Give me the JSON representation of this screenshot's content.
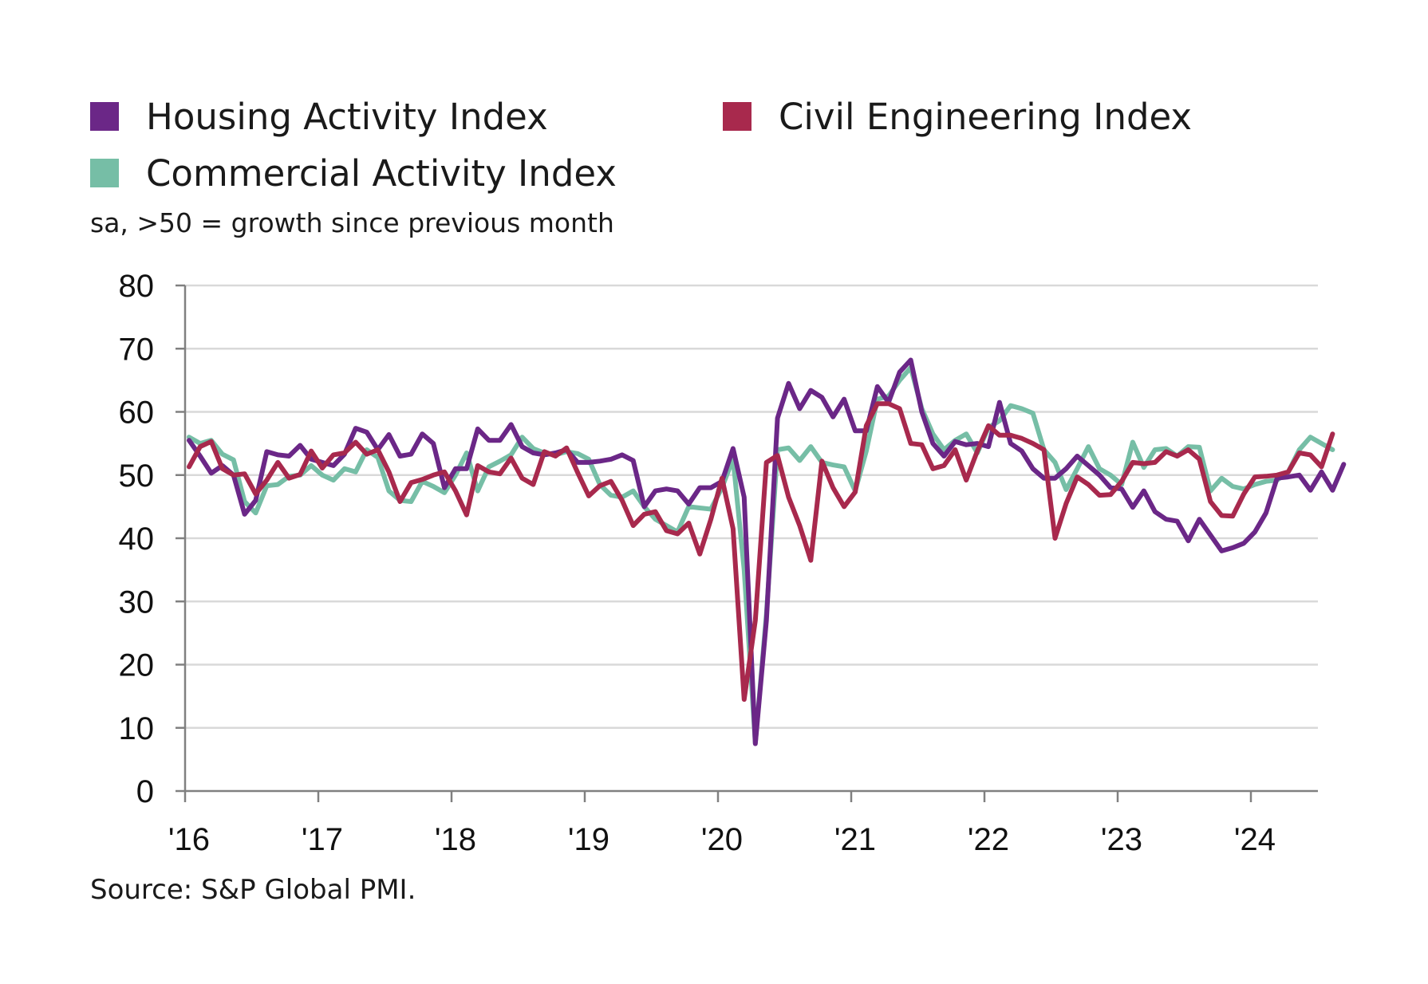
{
  "legend": {
    "items": [
      {
        "label": "Housing Activity Index",
        "color": "#6b2787"
      },
      {
        "label": "Civil Engineering Index",
        "color": "#a8294d"
      },
      {
        "label": "Commercial Activity Index",
        "color": "#76bea6"
      }
    ]
  },
  "subtitle": "sa, >50 = growth since previous month",
  "source": "Source: S&P Global PMI.",
  "chart_data": {
    "type": "line",
    "title": "",
    "xlabel": "",
    "ylabel": "",
    "ylim": [
      0,
      80
    ],
    "yticks": [
      0,
      10,
      20,
      30,
      40,
      50,
      60,
      70,
      80
    ],
    "xtick_labels": [
      "'16",
      "'17",
      "'18",
      "'19",
      "'20",
      "'21",
      "'22",
      "'23",
      "'24"
    ],
    "grid": true,
    "legend_position": "top",
    "x_start": "2016-01",
    "x_end": "2024-07",
    "series": [
      {
        "name": "Housing Activity Index",
        "color": "#6b2787",
        "values": [
          55.5,
          53.0,
          50.3,
          51.5,
          50.0,
          43.8,
          46.0,
          53.7,
          53.2,
          53.0,
          54.7,
          52.5,
          52.0,
          51.5,
          53.3,
          57.4,
          56.8,
          54.0,
          56.4,
          53.0,
          53.3,
          56.5,
          55.0,
          48.0,
          51.0,
          51.0,
          57.3,
          55.5,
          55.5,
          58.0,
          54.5,
          53.5,
          53.2,
          53.5,
          54.0,
          52.0,
          52.0,
          52.2,
          52.5,
          53.2,
          52.3,
          45.0,
          47.5,
          47.8,
          47.5,
          45.4,
          48.0,
          48.0,
          49.0,
          54.2,
          46.5,
          7.5,
          27.0,
          59.0,
          64.5,
          60.5,
          63.4,
          62.3,
          59.2,
          62.0,
          57.0,
          57.0,
          64.0,
          61.5,
          66.3,
          68.2,
          60.0,
          55.0,
          53.0,
          55.3,
          54.8,
          55.0,
          54.5,
          61.5,
          55.0,
          53.8,
          51.0,
          49.5,
          49.5,
          51.0,
          53.0,
          51.5,
          50.0,
          48.0,
          47.8,
          44.9,
          47.5,
          44.2,
          43.0,
          42.7,
          39.6,
          43.0,
          40.5,
          38.0,
          38.5,
          39.2,
          41.0,
          44.0,
          49.5,
          49.7,
          50.0,
          47.6,
          50.5,
          47.6,
          51.7
        ]
      },
      {
        "name": "Civil Engineering Index",
        "color": "#a8294d",
        "values": [
          51.3,
          54.5,
          55.3,
          51.0,
          50.0,
          50.2,
          47.0,
          49.2,
          52.0,
          49.5,
          50.1,
          53.8,
          51.1,
          53.2,
          53.5,
          55.2,
          53.3,
          54.0,
          50.5,
          45.8,
          48.8,
          49.3,
          50.0,
          50.5,
          47.5,
          43.7,
          51.5,
          50.5,
          50.2,
          52.7,
          49.5,
          48.5,
          53.7,
          53.0,
          54.3,
          50.4,
          46.7,
          48.3,
          49.0,
          46.0,
          42.0,
          43.8,
          44.2,
          41.2,
          40.7,
          42.4,
          37.5,
          43.0,
          49.5,
          41.5,
          14.5,
          27.0,
          52.0,
          53.1,
          46.5,
          42.0,
          36.5,
          52.2,
          48.0,
          45.0,
          47.3,
          57.8,
          61.3,
          61.3,
          60.5,
          55.0,
          54.8,
          51.0,
          51.5,
          54.0,
          49.2,
          53.8,
          57.8,
          56.3,
          56.3,
          55.8,
          55.0,
          54.0,
          40.0,
          45.5,
          49.7,
          48.5,
          46.8,
          46.9,
          49.0,
          52.0,
          51.8,
          52.0,
          53.7,
          53.0,
          54.0,
          52.5,
          45.8,
          43.6,
          43.5,
          47.0,
          49.7,
          49.8,
          50.0,
          50.5,
          53.5,
          53.2,
          51.3,
          56.5
        ]
      },
      {
        "name": "Commercial Activity Index",
        "color": "#76bea6",
        "values": [
          56.0,
          55.0,
          55.5,
          53.3,
          52.4,
          45.8,
          44.0,
          48.3,
          48.5,
          49.8,
          50.0,
          51.5,
          50.0,
          49.2,
          51.0,
          50.5,
          54.0,
          52.8,
          47.5,
          46.0,
          45.8,
          49.0,
          48.2,
          47.2,
          50.0,
          53.5,
          47.5,
          51.3,
          52.2,
          53.2,
          56.0,
          54.2,
          53.5,
          53.2,
          53.7,
          53.4,
          52.5,
          48.5,
          46.8,
          46.5,
          47.5,
          45.0,
          43.0,
          42.0,
          41.0,
          45.0,
          44.8,
          44.6,
          48.0,
          52.6,
          35.0,
          7.6,
          28.0,
          54.0,
          54.3,
          52.3,
          54.5,
          52.0,
          51.6,
          51.3,
          47.5,
          53.8,
          62.0,
          62.5,
          65.0,
          67.0,
          60.5,
          56.5,
          54.0,
          55.5,
          56.5,
          53.5,
          57.5,
          58.6,
          61.0,
          60.5,
          59.8,
          54.0,
          52.0,
          47.7,
          51.0,
          54.5,
          51.0,
          50.0,
          48.5,
          55.2,
          51.2,
          54.0,
          54.2,
          53.0,
          54.5,
          54.4,
          47.5,
          49.5,
          48.2,
          47.8,
          48.5,
          49.0,
          49.2,
          50.5,
          54.0,
          56.0,
          55.0,
          54.0
        ]
      }
    ]
  }
}
